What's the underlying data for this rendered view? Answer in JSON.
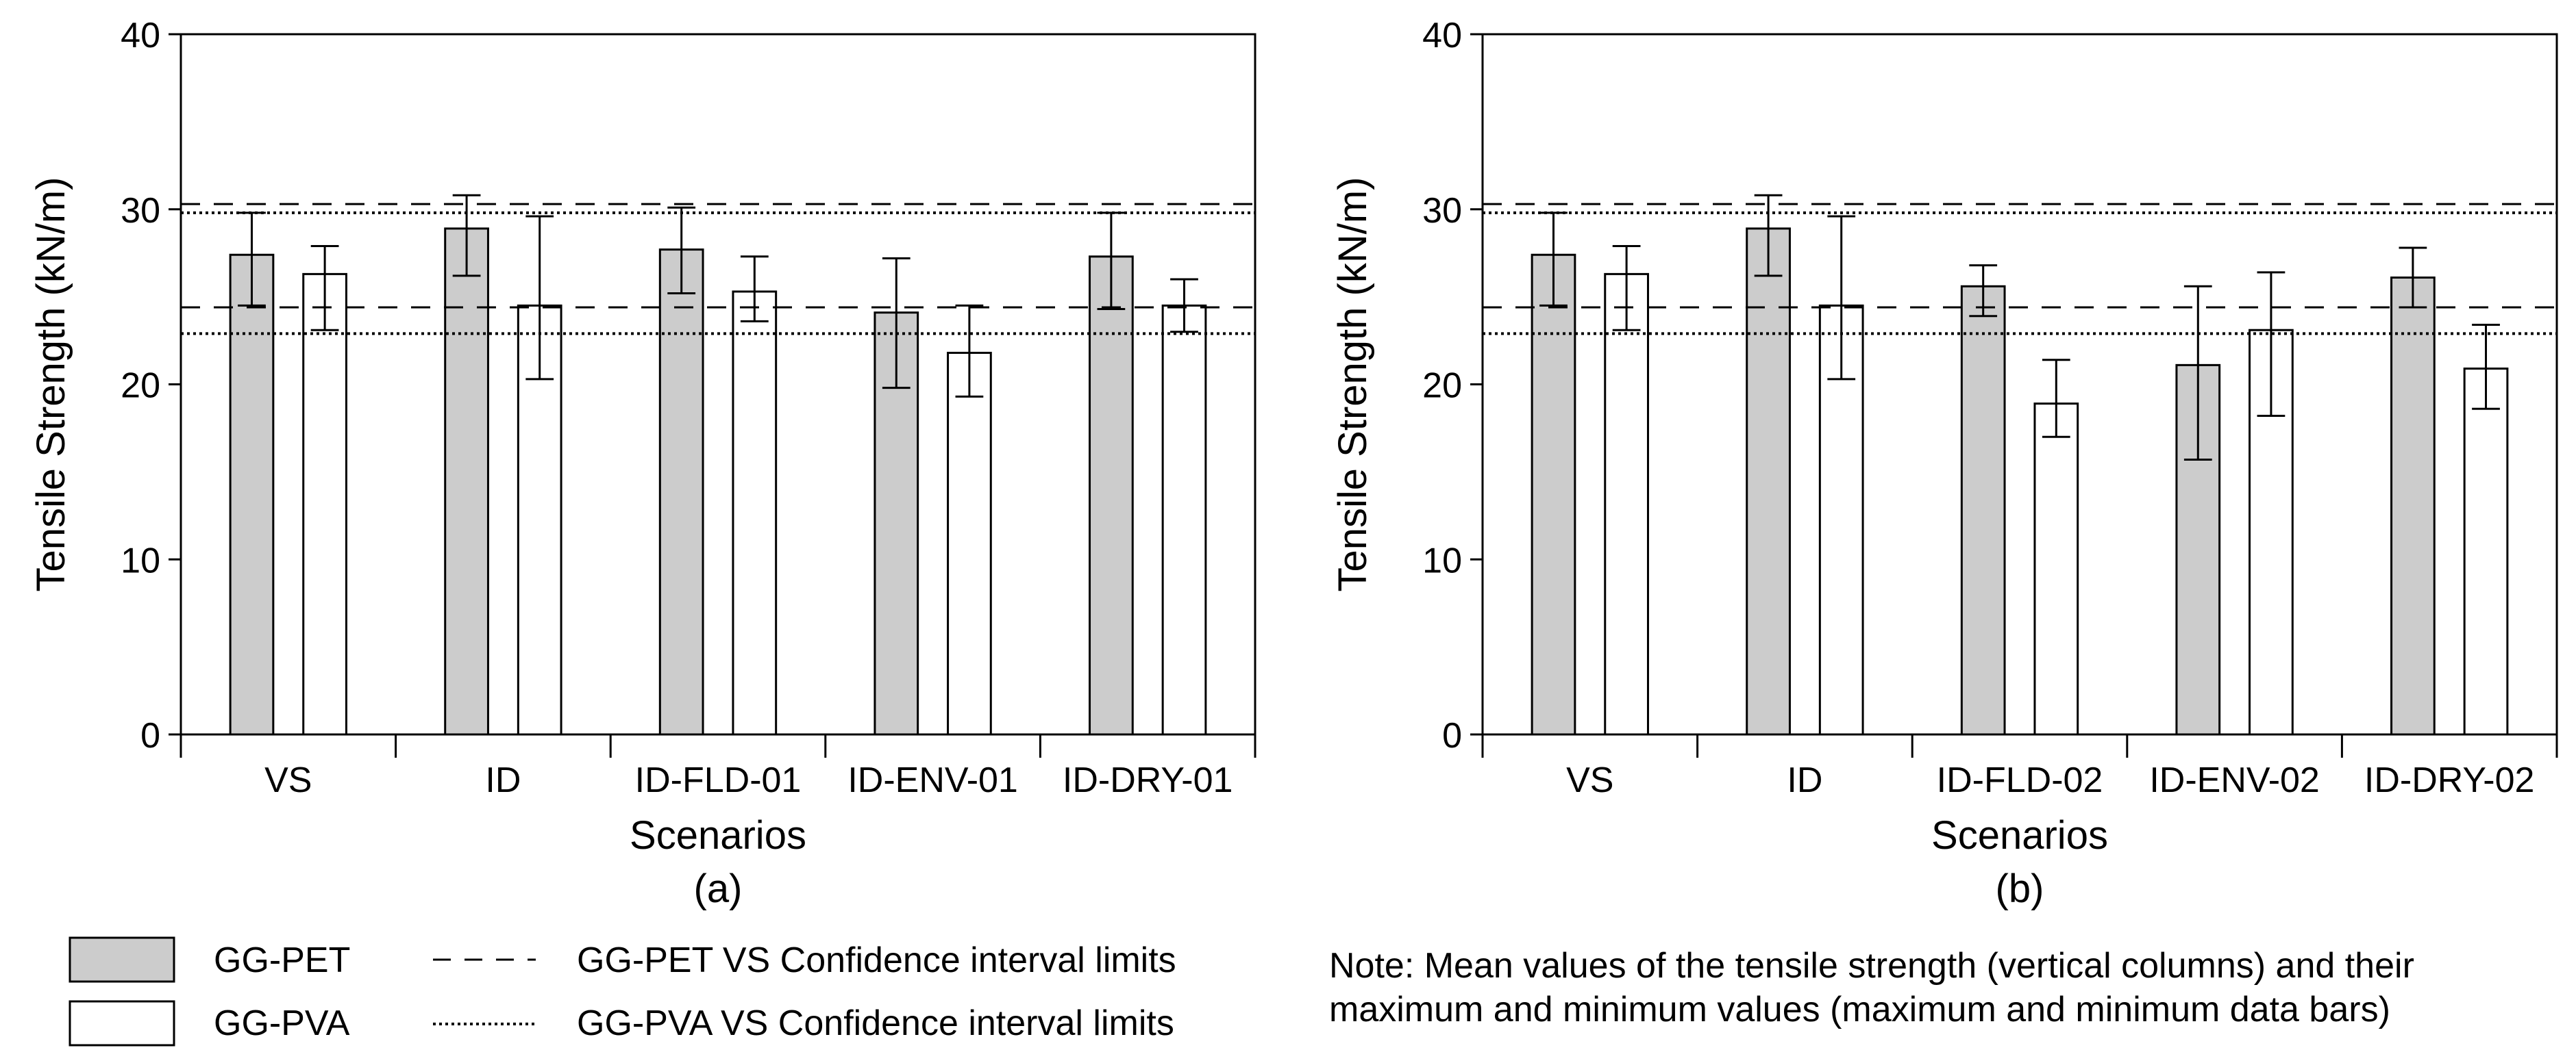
{
  "colors": {
    "pet_fill": "#cccccc",
    "pva_fill": "#ffffff",
    "stroke": "#000000"
  },
  "chart_data": [
    {
      "type": "bar",
      "panel_label": "(a)",
      "xlabel": "Scenarios",
      "ylabel": "Tensile Strength (kN/m)",
      "ylim": [
        0,
        40
      ],
      "yticks": [
        0,
        10,
        20,
        30,
        40
      ],
      "categories": [
        "VS",
        "ID",
        "ID-FLD-01",
        "ID-ENV-01",
        "ID-DRY-01"
      ],
      "series": [
        {
          "name": "GG-PET",
          "values": [
            27.4,
            28.9,
            27.7,
            24.1,
            27.3
          ],
          "max": [
            29.8,
            30.8,
            30.1,
            27.2,
            29.8
          ],
          "min": [
            24.5,
            26.2,
            25.2,
            19.8,
            24.3
          ]
        },
        {
          "name": "GG-PVA",
          "values": [
            26.3,
            24.5,
            25.3,
            21.8,
            24.5
          ],
          "max": [
            27.9,
            29.6,
            27.3,
            24.5,
            26.0
          ],
          "min": [
            23.1,
            20.3,
            23.6,
            19.3,
            23.0
          ]
        }
      ],
      "reference_lines": [
        {
          "name": "GG-PET VS Confidence interval limits",
          "values": [
            30.3,
            24.4
          ],
          "style": "dashed"
        },
        {
          "name": "GG-PVA VS Confidence interval limits",
          "values": [
            29.8,
            22.9
          ],
          "style": "dotted"
        }
      ]
    },
    {
      "type": "bar",
      "panel_label": "(b)",
      "xlabel": "Scenarios",
      "ylabel": "Tensile Strength (kN/m)",
      "ylim": [
        0,
        40
      ],
      "yticks": [
        0,
        10,
        20,
        30,
        40
      ],
      "categories": [
        "VS",
        "ID",
        "ID-FLD-02",
        "ID-ENV-02",
        "ID-DRY-02"
      ],
      "series": [
        {
          "name": "GG-PET",
          "values": [
            27.4,
            28.9,
            25.6,
            21.1,
            26.1
          ],
          "max": [
            29.8,
            30.8,
            26.8,
            25.6,
            27.8
          ],
          "min": [
            24.5,
            26.2,
            23.9,
            15.7,
            24.4
          ]
        },
        {
          "name": "GG-PVA",
          "values": [
            26.3,
            24.5,
            18.9,
            23.1,
            20.9
          ],
          "max": [
            27.9,
            29.6,
            21.4,
            26.4,
            23.4
          ],
          "min": [
            23.1,
            20.3,
            17.0,
            18.2,
            18.6
          ]
        }
      ],
      "reference_lines": [
        {
          "name": "GG-PET VS Confidence interval limits",
          "values": [
            30.3,
            24.4
          ],
          "style": "dashed"
        },
        {
          "name": "GG-PVA VS Confidence interval limits",
          "values": [
            29.8,
            22.9
          ],
          "style": "dotted"
        }
      ]
    }
  ],
  "legend": {
    "items": [
      {
        "label": "GG-PET",
        "kind": "swatch",
        "color": "#cccccc"
      },
      {
        "label": "GG-PVA",
        "kind": "swatch",
        "color": "#ffffff"
      },
      {
        "label": "GG-PET VS Confidence interval limits",
        "kind": "dashed"
      },
      {
        "label": "GG-PVA VS Confidence interval limits",
        "kind": "dotted"
      }
    ]
  },
  "note": {
    "line1": "Note: Mean values of the tensile strength (vertical columns) and their",
    "line2": "maximum and minimum values (maximum and minimum data bars)"
  }
}
